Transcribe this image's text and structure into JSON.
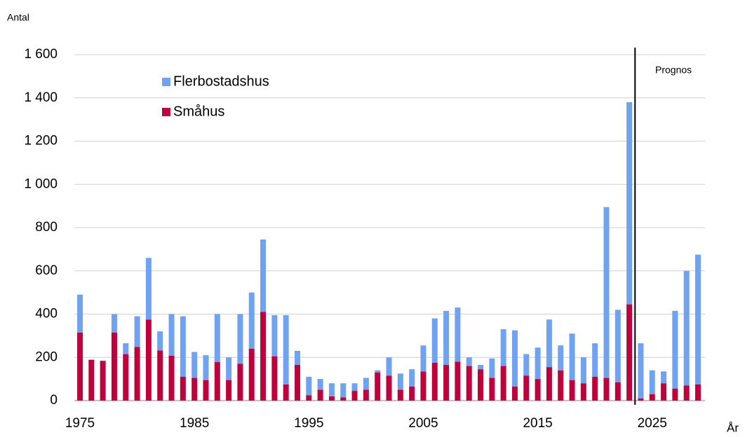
{
  "chart_data": {
    "type": "stacked_bar",
    "y_label": "Antal",
    "x_label": "År",
    "annotation": {
      "text": "Prognos",
      "x": 2023.5
    },
    "x": [
      1975,
      1976,
      1977,
      1978,
      1979,
      1980,
      1981,
      1982,
      1983,
      1984,
      1985,
      1986,
      1987,
      1988,
      1989,
      1990,
      1991,
      1992,
      1993,
      1994,
      1995,
      1996,
      1997,
      1998,
      1999,
      2000,
      2001,
      2002,
      2003,
      2004,
      2005,
      2006,
      2007,
      2008,
      2009,
      2010,
      2011,
      2012,
      2013,
      2014,
      2015,
      2016,
      2017,
      2018,
      2019,
      2020,
      2021,
      2022,
      2023,
      2024,
      2025,
      2026,
      2027,
      2028,
      2029
    ],
    "series": [
      {
        "name": "Småhus",
        "color": "#c0003c",
        "values": [
          315,
          188,
          183,
          315,
          215,
          248,
          375,
          232,
          208,
          110,
          105,
          95,
          178,
          95,
          170,
          240,
          410,
          205,
          75,
          165,
          25,
          50,
          20,
          15,
          45,
          50,
          130,
          115,
          50,
          65,
          135,
          175,
          165,
          180,
          160,
          145,
          105,
          160,
          65,
          115,
          100,
          155,
          140,
          95,
          80,
          110,
          105,
          85,
          445,
          10,
          30,
          80,
          55,
          70,
          75
        ]
      },
      {
        "name": "Flerbostadshus",
        "color": "#6fa2f2",
        "values": [
          175,
          2,
          2,
          85,
          50,
          142,
          285,
          88,
          192,
          280,
          120,
          115,
          222,
          105,
          230,
          260,
          335,
          190,
          320,
          65,
          85,
          50,
          60,
          65,
          35,
          55,
          10,
          85,
          75,
          80,
          120,
          205,
          250,
          250,
          40,
          20,
          90,
          170,
          260,
          100,
          145,
          220,
          115,
          215,
          120,
          155,
          790,
          335,
          935,
          255,
          110,
          55,
          360,
          530,
          600
        ]
      }
    ],
    "legend_order": [
      "Flerbostadshus",
      "Småhus"
    ],
    "xlim": [
      1975,
      2029
    ],
    "xticks": [
      1975,
      1985,
      1995,
      2005,
      2015,
      2025
    ],
    "ylim": [
      0,
      1600
    ],
    "yticks": [
      0,
      200,
      400,
      600,
      800,
      {
        "value": 1000,
        "label": "1 000"
      },
      {
        "value": 1200,
        "label": "1 200"
      },
      {
        "value": 1400,
        "label": "1 400"
      },
      {
        "value": 1600,
        "label": "1 600"
      }
    ],
    "grid": true
  }
}
